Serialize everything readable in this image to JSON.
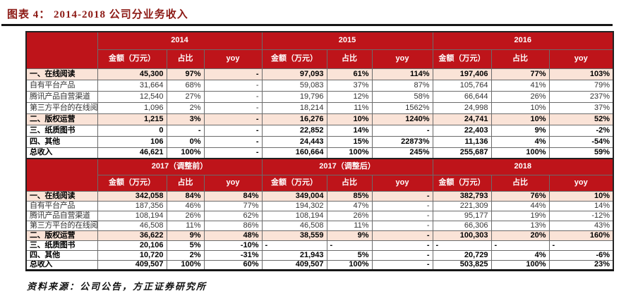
{
  "title": "图表 4： 2014-2018 公司分业务收入",
  "source_note": "资料来源：公司公告，方正证券研究所",
  "colors": {
    "header_red": "#BE141A",
    "highlight_pink": "#FAE3D7",
    "title_maroon": "#8C1914"
  },
  "table": {
    "col_headers": {
      "amount": "金额（万元）",
      "share": "占比",
      "yoy": "yoy"
    },
    "top": {
      "years": [
        "2014",
        "2015",
        "2016"
      ],
      "rows": [
        {
          "label": "一、在线阅读",
          "bold": true,
          "highlight": true,
          "cells": [
            "45,300",
            "97%",
            "-",
            "97,093",
            "61%",
            "114%",
            "197,406",
            "77%",
            "103%"
          ]
        },
        {
          "label": "自有平台产品",
          "bold": false,
          "highlight": false,
          "cells": [
            "31,664",
            "68%",
            "-",
            "59,083",
            "37%",
            "87%",
            "105,764",
            "41%",
            "79%"
          ]
        },
        {
          "label": "腾讯产品自营渠道",
          "bold": false,
          "highlight": false,
          "cells": [
            "12,540",
            "27%",
            "-",
            "19,796",
            "12%",
            "58%",
            "66,644",
            "26%",
            "237%"
          ]
        },
        {
          "label": "第三方平台的在线阅读",
          "bold": false,
          "highlight": false,
          "cells": [
            "1,096",
            "2%",
            "-",
            "18,214",
            "11%",
            "1562%",
            "24,998",
            "10%",
            "37%"
          ]
        },
        {
          "label": "二、版权运营",
          "bold": true,
          "highlight": true,
          "cells": [
            "1,215",
            "3%",
            "-",
            "16,276",
            "10%",
            "1240%",
            "24,741",
            "10%",
            "52%"
          ]
        },
        {
          "label": "三、纸质图书",
          "bold": true,
          "highlight": false,
          "cells": [
            "0",
            "-",
            "-",
            "22,852",
            "14%",
            "-",
            "22,403",
            "9%",
            "-2%"
          ]
        },
        {
          "label": "四、其他",
          "bold": true,
          "highlight": false,
          "cells": [
            "106",
            "0%",
            "-",
            "24,443",
            "15%",
            "22873%",
            "11,136",
            "4%",
            "-54%"
          ]
        },
        {
          "label": "总收入",
          "bold": true,
          "highlight": false,
          "cells": [
            "46,621",
            "100%",
            "-",
            "160,664",
            "100%",
            "245%",
            "255,687",
            "100%",
            "59%"
          ]
        }
      ]
    },
    "bottom": {
      "years": [
        "2017（调整前）",
        "2017（调整后）",
        "2018"
      ],
      "rows": [
        {
          "label": "一、在线阅读",
          "bold": true,
          "highlight": true,
          "cells": [
            "342,058",
            "84%",
            "84%",
            "349,004",
            "85%",
            "-",
            "382,793",
            "76%",
            "10%"
          ]
        },
        {
          "label": "自有平台产品",
          "bold": false,
          "highlight": false,
          "cells": [
            "187,356",
            "46%",
            "77%",
            "194,302",
            "47%",
            "-",
            "221,309",
            "44%",
            "14%"
          ]
        },
        {
          "label": "腾讯产品自营渠道",
          "bold": false,
          "highlight": false,
          "cells": [
            "108,194",
            "26%",
            "62%",
            "108,194",
            "26%",
            "-",
            "95,177",
            "19%",
            "-12%"
          ]
        },
        {
          "label": "第三方平台的在线阅读",
          "bold": false,
          "highlight": false,
          "cells": [
            "46,508",
            "11%",
            "86%",
            "46,508",
            "11%",
            "-",
            "66,306",
            "13%",
            "43%"
          ]
        },
        {
          "label": "二、版权运营",
          "bold": true,
          "highlight": true,
          "cells": [
            "36,622",
            "9%",
            "48%",
            "38,559",
            "9%",
            "-",
            "100,303",
            "20%",
            "160%"
          ]
        },
        {
          "label": "三、纸质图书",
          "bold": true,
          "highlight": false,
          "cells": [
            "20,106",
            "5%",
            "-10%",
            "-",
            "-",
            "-",
            "-",
            "-",
            "-"
          ],
          "aligns": [
            "r",
            "r",
            "r",
            "l",
            "l",
            "r",
            "l",
            "l",
            "l"
          ]
        },
        {
          "label": "四、其他",
          "bold": true,
          "highlight": false,
          "cells": [
            "10,720",
            "2%",
            "-31%",
            "21,943",
            "5%",
            "-",
            "20,729",
            "4%",
            "-6%"
          ]
        },
        {
          "label": "总收入",
          "bold": true,
          "highlight": false,
          "cells": [
            "409,507",
            "100%",
            "60%",
            "409,507",
            "100%",
            "-",
            "503,825",
            "100%",
            "23%"
          ]
        }
      ]
    }
  }
}
